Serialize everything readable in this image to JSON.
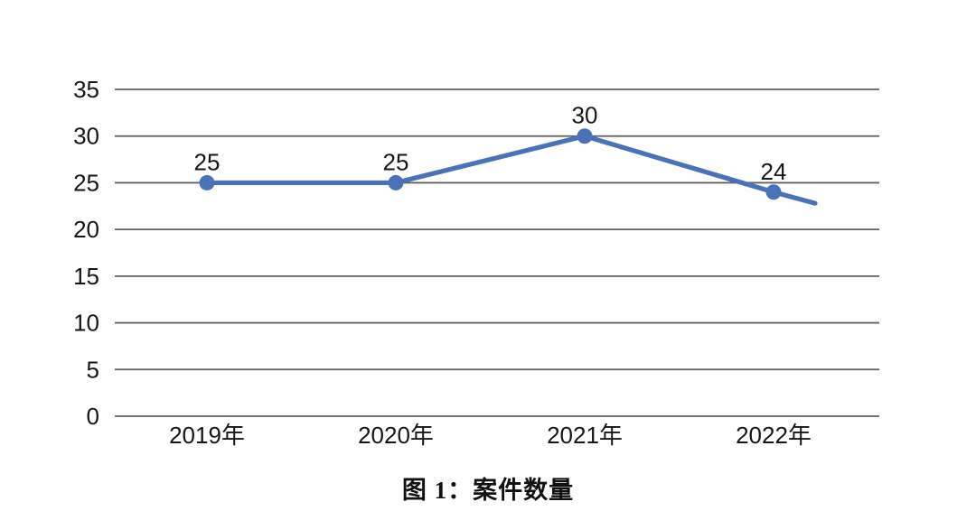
{
  "page": {
    "background_color": "#ffffff"
  },
  "chart_data": {
    "type": "line",
    "title": "图 1：案件数量",
    "categories": [
      "2019年",
      "2020年",
      "2021年",
      "2022年"
    ],
    "series": [
      {
        "name": "案件数量",
        "values": [
          25,
          25,
          30,
          24
        ]
      }
    ],
    "data_labels": [
      "25",
      "25",
      "30",
      "24"
    ],
    "xlabel": "",
    "ylabel": "",
    "ylim": [
      0,
      35
    ],
    "yticks": [
      0,
      5,
      10,
      15,
      20,
      25,
      30,
      35
    ],
    "grid": "horizontal-only",
    "legend": "none",
    "marker": "circle",
    "line_color": "#4a72b8",
    "marker_color": "#4a72b8",
    "gridline_color": "#606060",
    "text_color": "#161616",
    "trailing_segment": {
      "visible": true,
      "end_value": 22.8
    }
  }
}
